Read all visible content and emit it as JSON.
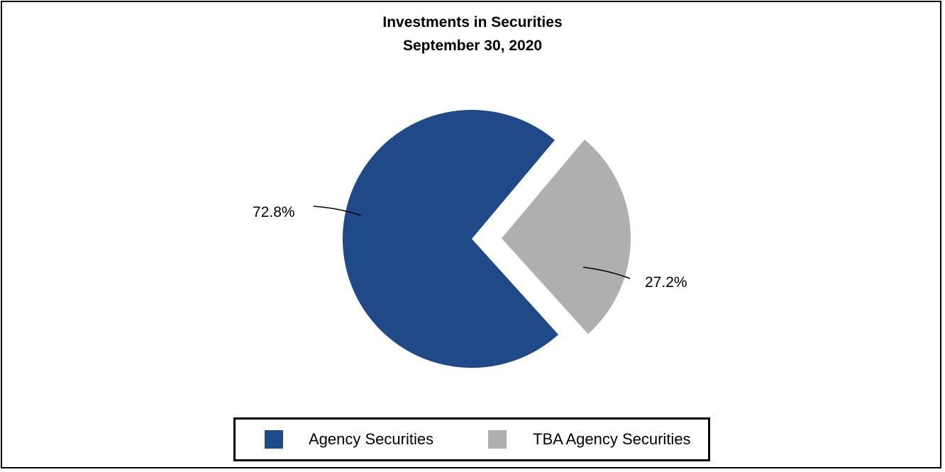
{
  "chart_data": {
    "type": "pie",
    "title": "Investments in Securities",
    "subtitle": "September 30, 2020",
    "slices": [
      {
        "label": "Agency Securities",
        "value": 72.8,
        "display": "72.8%",
        "color": "#1f4a87"
      },
      {
        "label": "TBA Agency Securities",
        "value": 27.2,
        "display": "27.2%",
        "color": "#afafaf"
      }
    ],
    "legend_position": "bottom"
  }
}
